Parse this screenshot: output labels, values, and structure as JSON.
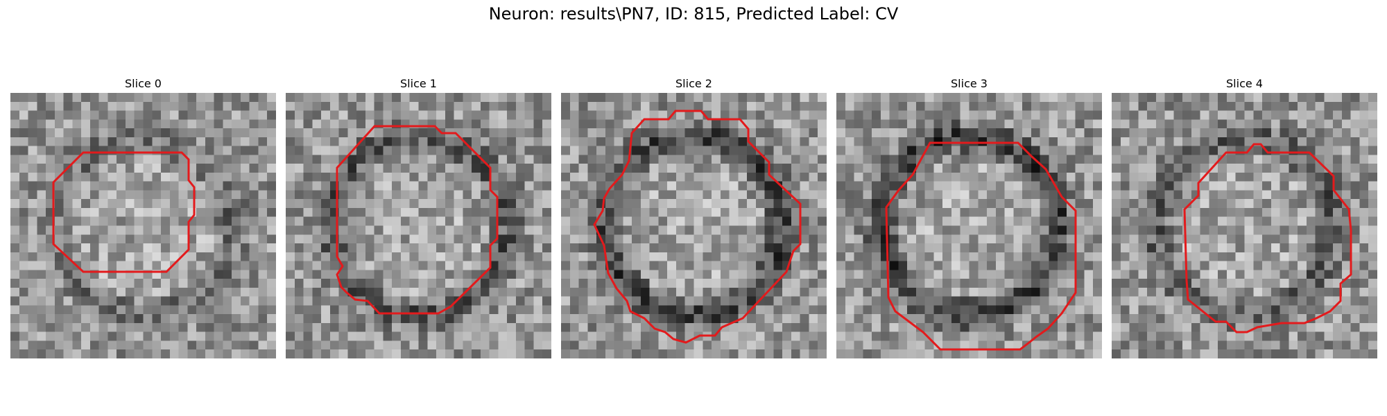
{
  "figure": {
    "title": "Neuron: results\\PN7, ID: 815, Predicted Label: CV",
    "contour_color": "#e31a1c",
    "panels": [
      {
        "title": "Slice 0",
        "seed": 11,
        "ring_darkness": 0.35
      },
      {
        "title": "Slice 1",
        "seed": 23,
        "ring_darkness": 0.55
      },
      {
        "title": "Slice 2",
        "seed": 37,
        "ring_darkness": 0.75
      },
      {
        "title": "Slice 3",
        "seed": 51,
        "ring_darkness": 0.8
      },
      {
        "title": "Slice 4",
        "seed": 67,
        "ring_darkness": 0.5
      }
    ]
  }
}
